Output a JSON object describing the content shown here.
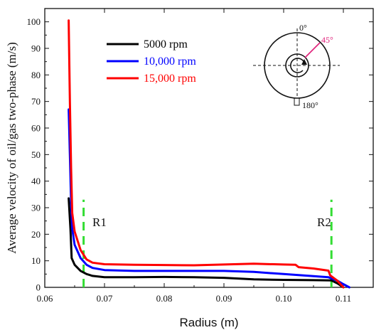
{
  "chart_data": {
    "type": "line",
    "title": "",
    "xlabel": "Radius (m)",
    "ylabel": "Average velocity of oil/gas two-phase (m/s)",
    "xlim": [
      0.06,
      0.115
    ],
    "ylim": [
      0,
      105
    ],
    "x_ticks": [
      0.06,
      0.07,
      0.08,
      0.09,
      0.1,
      0.11
    ],
    "x_tick_labels": [
      "0.06",
      "0.07",
      "0.08",
      "0.09",
      "0.10",
      "0.11"
    ],
    "y_ticks": [
      0,
      10,
      20,
      30,
      40,
      50,
      60,
      70,
      80,
      90,
      100
    ],
    "y_tick_labels": [
      "0",
      "10",
      "20",
      "30",
      "40",
      "50",
      "60",
      "70",
      "80",
      "90",
      "100"
    ],
    "grid": false,
    "legend_position": "top-left",
    "series": [
      {
        "name": "5000 rpm",
        "color": "#000000",
        "x": [
          0.064,
          0.0643,
          0.0645,
          0.065,
          0.066,
          0.067,
          0.068,
          0.07,
          0.075,
          0.08,
          0.085,
          0.09,
          0.095,
          0.1,
          0.105,
          0.108,
          0.109,
          0.11
        ],
        "y": [
          33.5,
          22,
          11,
          8.5,
          6.2,
          5.0,
          4.3,
          3.8,
          3.8,
          3.9,
          3.8,
          3.6,
          3.0,
          2.8,
          2.7,
          2.6,
          1.5,
          0
        ]
      },
      {
        "name": "10,000 rpm",
        "color": "#0000ff",
        "x": [
          0.064,
          0.0642,
          0.0644,
          0.0646,
          0.065,
          0.066,
          0.067,
          0.068,
          0.07,
          0.075,
          0.08,
          0.085,
          0.09,
          0.095,
          0.1,
          0.105,
          0.1075,
          0.109,
          0.11,
          0.111
        ],
        "y": [
          67,
          50,
          32,
          22,
          16,
          11,
          8.5,
          7.3,
          6.5,
          6.2,
          6.2,
          6.2,
          6.2,
          5.8,
          5.0,
          4.2,
          3.8,
          2.5,
          1.2,
          0
        ]
      },
      {
        "name": "15,000 rpm",
        "color": "#ff0000",
        "x": [
          0.064,
          0.0642,
          0.0644,
          0.0646,
          0.065,
          0.066,
          0.067,
          0.068,
          0.07,
          0.075,
          0.08,
          0.085,
          0.09,
          0.095,
          0.1,
          0.102,
          0.1025,
          0.105,
          0.1075,
          0.1078,
          0.109,
          0.11
        ],
        "y": [
          100.5,
          70,
          45,
          28,
          21,
          14,
          10.5,
          9.3,
          8.7,
          8.5,
          8.4,
          8.3,
          8.6,
          8.9,
          8.6,
          8.5,
          7.6,
          7.1,
          6.3,
          4.5,
          2.5,
          0
        ]
      }
    ],
    "reference_lines": [
      {
        "label": "R1",
        "x": 0.0665,
        "y_range": [
          0,
          33
        ],
        "color": "#33dd33"
      },
      {
        "label": "R2",
        "x": 0.108,
        "y_range": [
          0,
          33
        ],
        "color": "#33dd33"
      }
    ],
    "inset": {
      "angle_labels": [
        "0°",
        "45°",
        "180°"
      ],
      "angle_45_color": "#e0207a"
    }
  }
}
